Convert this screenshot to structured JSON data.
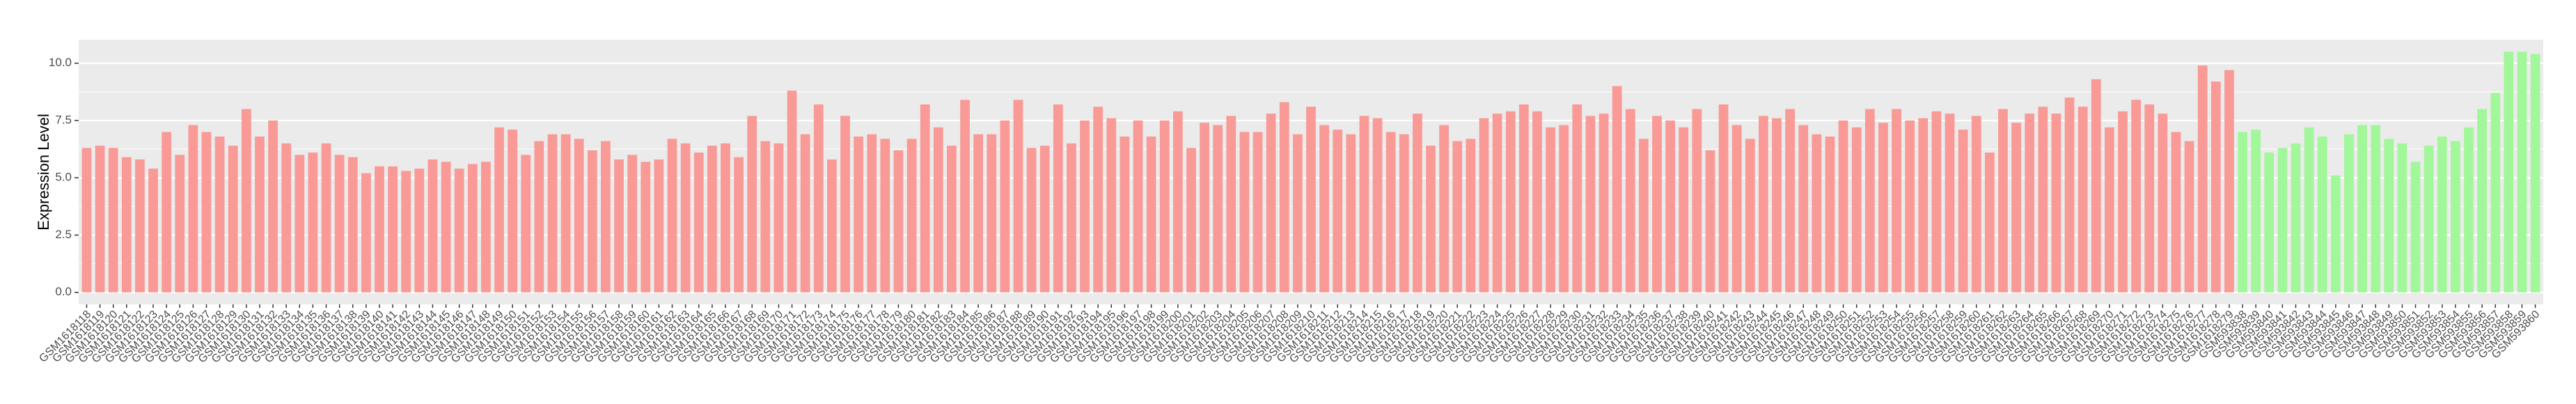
{
  "chart_data": {
    "type": "bar",
    "y_label": "Expression Level",
    "ylim": [
      -0.525,
      11.025
    ],
    "yticks": [
      {
        "value": 0,
        "label": "0.0"
      },
      2.5,
      {
        "value": 5,
        "label": "5.0"
      },
      7.5,
      {
        "value": 10,
        "label": "10.0"
      }
    ],
    "grid": true,
    "series": [
      {
        "color": "#F99A96",
        "categories": [
          "GSM1618118",
          "GSM1618119",
          "GSM1618120",
          "GSM1618121",
          "GSM1618122",
          "GSM1618123",
          "GSM1618124",
          "GSM1618125",
          "GSM1618126",
          "GSM1618127",
          "GSM1618128",
          "GSM1618129",
          "GSM1618130",
          "GSM1618131",
          "GSM1618132",
          "GSM1618133",
          "GSM1618134",
          "GSM1618135",
          "GSM1618136",
          "GSM1618137",
          "GSM1618138",
          "GSM1618139",
          "GSM1618140",
          "GSM1618141",
          "GSM1618142",
          "GSM1618143",
          "GSM1618144",
          "GSM1618145",
          "GSM1618146",
          "GSM1618147",
          "GSM1618148",
          "GSM1618149",
          "GSM1618150",
          "GSM1618151",
          "GSM1618152",
          "GSM1618153",
          "GSM1618154",
          "GSM1618155",
          "GSM1618156",
          "GSM1618157",
          "GSM1618158",
          "GSM1618159",
          "GSM1618160",
          "GSM1618161",
          "GSM1618162",
          "GSM1618163",
          "GSM1618164",
          "GSM1618165",
          "GSM1618166",
          "GSM1618167",
          "GSM1618168",
          "GSM1618169",
          "GSM1618170",
          "GSM1618171",
          "GSM1618172",
          "GSM1618173",
          "GSM1618174",
          "GSM1618175",
          "GSM1618176",
          "GSM1618177",
          "GSM1618178",
          "GSM1618179",
          "GSM1618180",
          "GSM1618181",
          "GSM1618182",
          "GSM1618183",
          "GSM1618184",
          "GSM1618185",
          "GSM1618186",
          "GSM1618187",
          "GSM1618188",
          "GSM1618189",
          "GSM1618190",
          "GSM1618191",
          "GSM1618192",
          "GSM1618193",
          "GSM1618194",
          "GSM1618195",
          "GSM1618196",
          "GSM1618197",
          "GSM1618198",
          "GSM1618199",
          "GSM1618200",
          "GSM1618201",
          "GSM1618202",
          "GSM1618203",
          "GSM1618204",
          "GSM1618205",
          "GSM1618206",
          "GSM1618207",
          "GSM1618208",
          "GSM1618209",
          "GSM1618210",
          "GSM1618211",
          "GSM1618212",
          "GSM1618213",
          "GSM1618214",
          "GSM1618215",
          "GSM1618216",
          "GSM1618217",
          "GSM1618218",
          "GSM1618219",
          "GSM1618220",
          "GSM1618221",
          "GSM1618222",
          "GSM1618223",
          "GSM1618224",
          "GSM1618225",
          "GSM1618226",
          "GSM1618227",
          "GSM1618228",
          "GSM1618229",
          "GSM1618230",
          "GSM1618231",
          "GSM1618232",
          "GSM1618233",
          "GSM1618234",
          "GSM1618235",
          "GSM1618236",
          "GSM1618237",
          "GSM1618238",
          "GSM1618239",
          "GSM1618240",
          "GSM1618241",
          "GSM1618242",
          "GSM1618243",
          "GSM1618244",
          "GSM1618245",
          "GSM1618246",
          "GSM1618247",
          "GSM1618248",
          "GSM1618249",
          "GSM1618250",
          "GSM1618251",
          "GSM1618252",
          "GSM1618253",
          "GSM1618254",
          "GSM1618255",
          "GSM1618256",
          "GSM1618257",
          "GSM1618258",
          "GSM1618259",
          "GSM1618260",
          "GSM1618261",
          "GSM1618262",
          "GSM1618263",
          "GSM1618264",
          "GSM1618265",
          "GSM1618266",
          "GSM1618267",
          "GSM1618268",
          "GSM1618269",
          "GSM1618270",
          "GSM1618271",
          "GSM1618272",
          "GSM1618273",
          "GSM1618274",
          "GSM1618275",
          "GSM1618276",
          "GSM1618277",
          "GSM1618278",
          "GSM1618279"
        ],
        "values": [
          6.3,
          6.4,
          6.3,
          5.9,
          5.8,
          5.4,
          7.0,
          6.0,
          7.3,
          7.0,
          6.8,
          6.4,
          8.0,
          6.8,
          7.5,
          6.5,
          6.0,
          6.1,
          6.5,
          6.0,
          5.9,
          5.2,
          5.5,
          5.5,
          5.3,
          5.4,
          5.8,
          5.7,
          5.4,
          5.6,
          5.7,
          7.2,
          7.1,
          6.0,
          6.6,
          6.9,
          6.9,
          6.7,
          6.2,
          6.6,
          5.8,
          6.0,
          5.7,
          5.8,
          6.7,
          6.5,
          6.1,
          6.4,
          6.5,
          5.9,
          7.7,
          6.6,
          6.5,
          8.8,
          6.9,
          8.2,
          5.8,
          7.7,
          6.8,
          6.9,
          6.7,
          6.2,
          6.7,
          8.2,
          7.2,
          6.4,
          8.4,
          6.9,
          6.9,
          7.5,
          8.4,
          6.3,
          6.4,
          8.2,
          6.5,
          7.5,
          8.1,
          7.6,
          6.8,
          7.5,
          6.8,
          7.5,
          7.9,
          6.3,
          7.4,
          7.3,
          7.7,
          7.0,
          7.0,
          7.8,
          8.3,
          6.9,
          8.1,
          7.3,
          7.1,
          6.9,
          7.7,
          7.6,
          7.0,
          6.9,
          7.8,
          6.4,
          7.3,
          6.6,
          6.7,
          7.6,
          7.8,
          7.9,
          8.2,
          7.9,
          7.2,
          7.3,
          8.2,
          7.7,
          7.8,
          9.0,
          8.0,
          6.7,
          7.7,
          7.5,
          7.2,
          8.0,
          6.2,
          8.2,
          7.3,
          6.7,
          7.7,
          7.6,
          8.0,
          7.3,
          6.9,
          6.8,
          7.5,
          7.2,
          8.0,
          7.4,
          8.0,
          7.5,
          7.6,
          7.9,
          7.8,
          7.1,
          7.7,
          6.1,
          8.0,
          7.4,
          7.8,
          8.1,
          7.8,
          8.5,
          8.1,
          9.3,
          7.2,
          7.9,
          8.4,
          8.2,
          7.8,
          7.0,
          6.6,
          9.9,
          9.2,
          9.7
        ]
      },
      {
        "color": "#A3F79B",
        "categories": [
          "GSM593838",
          "GSM593839",
          "GSM593840",
          "GSM593841",
          "GSM593842",
          "GSM593843",
          "GSM593844",
          "GSM593845",
          "GSM593846",
          "GSM593847",
          "GSM593848",
          "GSM593849",
          "GSM593850",
          "GSM593851",
          "GSM593852",
          "GSM593853",
          "GSM593854",
          "GSM593855",
          "GSM593856",
          "GSM593857",
          "GSM593858",
          "GSM593859",
          "GSM593860"
        ],
        "values": [
          7.0,
          7.1,
          6.1,
          6.3,
          6.5,
          7.2,
          6.8,
          5.1,
          6.9,
          7.3,
          7.3,
          6.7,
          6.5,
          5.7,
          6.4,
          6.8,
          6.6,
          7.2,
          8.0,
          8.7,
          10.5,
          10.5,
          10.4
        ]
      }
    ]
  }
}
